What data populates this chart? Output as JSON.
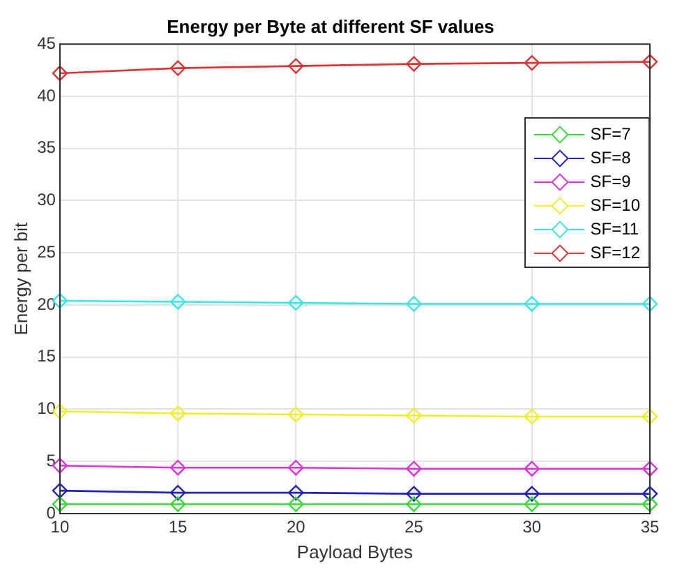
{
  "chart_data": {
    "type": "line",
    "title": "Energy per Byte at different SF values",
    "xlabel": "Payload Bytes",
    "ylabel": "Energy per bit",
    "x": [
      10,
      15,
      20,
      25,
      30,
      35
    ],
    "xlim": [
      10,
      35
    ],
    "xticks": [
      10,
      15,
      20,
      25,
      30,
      35
    ],
    "ylim": [
      0,
      45
    ],
    "yticks": [
      0,
      5,
      10,
      15,
      20,
      25,
      30,
      35,
      40,
      45
    ],
    "grid": true,
    "legend": "top right",
    "marker": "diamond",
    "line_style": "solid",
    "series": [
      {
        "name": "SF=7",
        "color": "#33dd33",
        "values": [
          0.9,
          0.9,
          0.9,
          0.9,
          0.9,
          0.9
        ]
      },
      {
        "name": "SF=8",
        "color": "#2222bb",
        "values": [
          2.2,
          2.0,
          2.0,
          1.9,
          1.9,
          1.9
        ]
      },
      {
        "name": "SF=9",
        "color": "#dd33dd",
        "values": [
          4.6,
          4.4,
          4.4,
          4.3,
          4.3,
          4.3
        ]
      },
      {
        "name": "SF=10",
        "color": "#f0f020",
        "values": [
          9.8,
          9.6,
          9.5,
          9.4,
          9.3,
          9.3
        ]
      },
      {
        "name": "SF=11",
        "color": "#33e8e8",
        "values": [
          20.4,
          20.3,
          20.2,
          20.1,
          20.1,
          20.1
        ]
      },
      {
        "name": "SF=12",
        "color": "#dd3333",
        "values": [
          42.2,
          42.7,
          42.9,
          43.1,
          43.2,
          43.3
        ]
      }
    ]
  }
}
